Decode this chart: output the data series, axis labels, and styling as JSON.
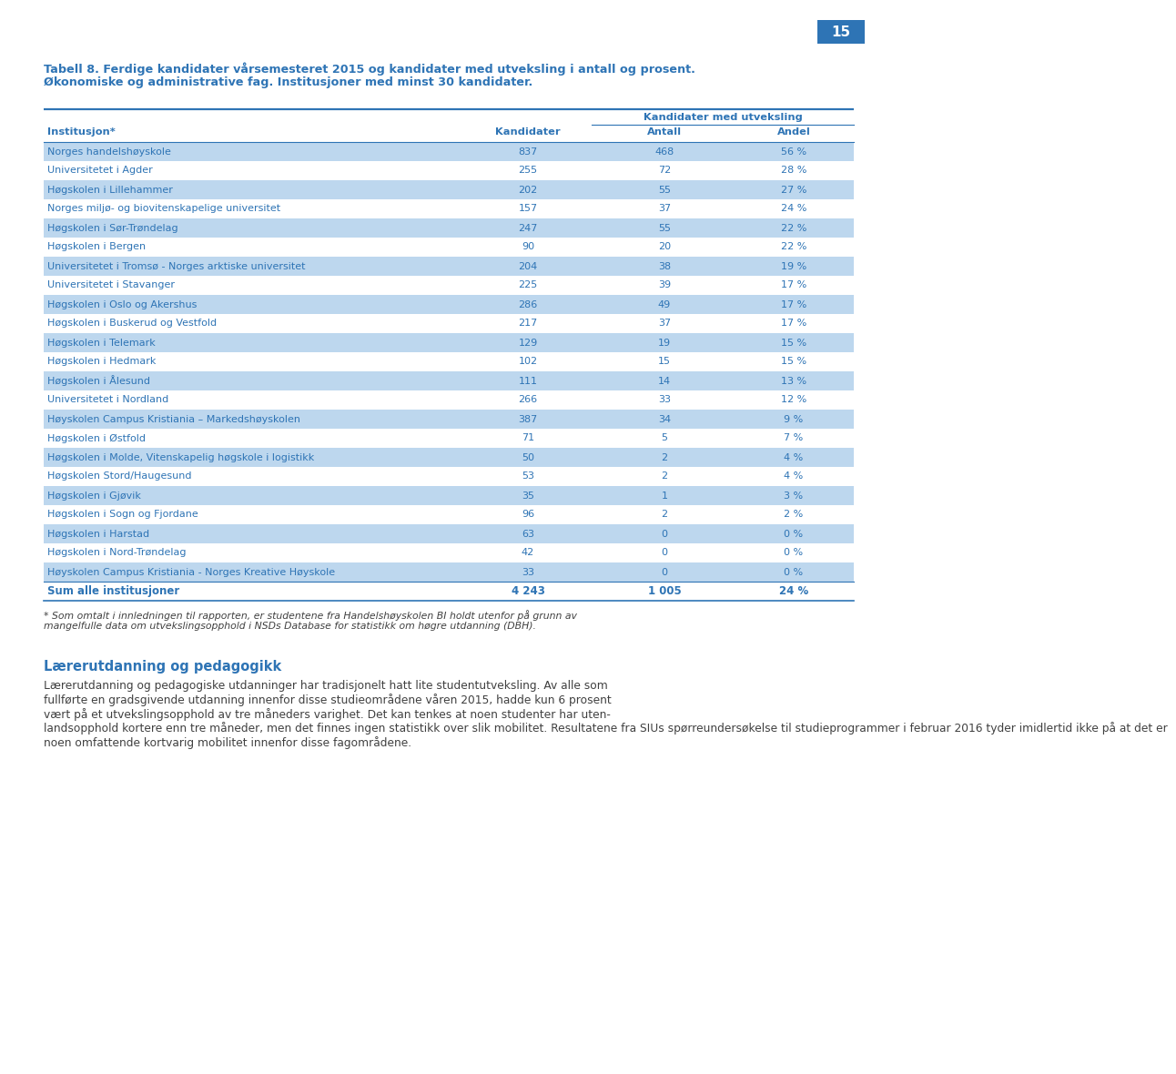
{
  "page_number": "15",
  "title_line1": "Tabell 8. Ferdige kandidater vårsemesteret 2015 og kandidater med utveksling i antall og prosent.",
  "title_line2": "Økonomiske og administrative fag. Institusjoner med minst 30 kandidater.",
  "col_header_inst": "Institusjon*",
  "col_header_kand": "Kandidater",
  "col_header_group": "Kandidater med utveksling",
  "col_header_antall": "Antall",
  "col_header_andel": "Andel",
  "rows": [
    {
      "inst": "Norges handelshøyskole",
      "kand": "837",
      "antall": "468",
      "andel": "56 %",
      "shade": true
    },
    {
      "inst": "Universitetet i Agder",
      "kand": "255",
      "antall": "72",
      "andel": "28 %",
      "shade": false
    },
    {
      "inst": "Høgskolen i Lillehammer",
      "kand": "202",
      "antall": "55",
      "andel": "27 %",
      "shade": true
    },
    {
      "inst": "Norges miljø- og biovitenskapelige universitet",
      "kand": "157",
      "antall": "37",
      "andel": "24 %",
      "shade": false
    },
    {
      "inst": "Høgskolen i Sør-Trøndelag",
      "kand": "247",
      "antall": "55",
      "andel": "22 %",
      "shade": true
    },
    {
      "inst": "Høgskolen i Bergen",
      "kand": "90",
      "antall": "20",
      "andel": "22 %",
      "shade": false
    },
    {
      "inst": "Universitetet i Tromsø - Norges arktiske universitet",
      "kand": "204",
      "antall": "38",
      "andel": "19 %",
      "shade": true
    },
    {
      "inst": "Universitetet i Stavanger",
      "kand": "225",
      "antall": "39",
      "andel": "17 %",
      "shade": false
    },
    {
      "inst": "Høgskolen i Oslo og Akershus",
      "kand": "286",
      "antall": "49",
      "andel": "17 %",
      "shade": true
    },
    {
      "inst": "Høgskolen i Buskerud og Vestfold",
      "kand": "217",
      "antall": "37",
      "andel": "17 %",
      "shade": false
    },
    {
      "inst": "Høgskolen i Telemark",
      "kand": "129",
      "antall": "19",
      "andel": "15 %",
      "shade": true
    },
    {
      "inst": "Høgskolen i Hedmark",
      "kand": "102",
      "antall": "15",
      "andel": "15 %",
      "shade": false
    },
    {
      "inst": "Høgskolen i Ålesund",
      "kand": "111",
      "antall": "14",
      "andel": "13 %",
      "shade": true
    },
    {
      "inst": "Universitetet i Nordland",
      "kand": "266",
      "antall": "33",
      "andel": "12 %",
      "shade": false
    },
    {
      "inst": "Høyskolen Campus Kristiania – Markedshøyskolen",
      "kand": "387",
      "antall": "34",
      "andel": "9 %",
      "shade": true
    },
    {
      "inst": "Høgskolen i Østfold",
      "kand": "71",
      "antall": "5",
      "andel": "7 %",
      "shade": false
    },
    {
      "inst": "Høgskolen i Molde, Vitenskapelig høgskole i logistikk",
      "kand": "50",
      "antall": "2",
      "andel": "4 %",
      "shade": true
    },
    {
      "inst": "Høgskolen Stord/Haugesund",
      "kand": "53",
      "antall": "2",
      "andel": "4 %",
      "shade": false
    },
    {
      "inst": "Høgskolen i Gjøvik",
      "kand": "35",
      "antall": "1",
      "andel": "3 %",
      "shade": true
    },
    {
      "inst": "Høgskolen i Sogn og Fjordane",
      "kand": "96",
      "antall": "2",
      "andel": "2 %",
      "shade": false
    },
    {
      "inst": "Høgskolen i Harstad",
      "kand": "63",
      "antall": "0",
      "andel": "0 %",
      "shade": true
    },
    {
      "inst": "Høgskolen i Nord-Trøndelag",
      "kand": "42",
      "antall": "0",
      "andel": "0 %",
      "shade": false
    },
    {
      "inst": "Høyskolen Campus Kristiania - Norges Kreative Høyskole",
      "kand": "33",
      "antall": "0",
      "andel": "0 %",
      "shade": true
    }
  ],
  "sum_row": {
    "inst": "Sum alle institusjoner",
    "kand": "4 243",
    "antall": "1 005",
    "andel": "24 %"
  },
  "footnote_line1": "* Som omtalt i innledningen til rapporten, er studentene fra Handelshøyskolen BI holdt utenfor på grunn av",
  "footnote_line2": "mangelfulle data om utvekslingsopphold i NSDs Database for statistikk om høgre utdanning (DBH).",
  "section_title": "Lærerutdanning og pedagogikk",
  "section_para": [
    "Lærerutdanning og pedagogiske utdanninger har tradisjonelt hatt lite studentutveksling. Av alle som",
    "fullførte en gradsgivende utdanning innenfor disse studieområdene våren 2015, hadde kun 6 prosent",
    "vært på et utvekslingsopphold av tre måneders varighet. Det kan tenkes at noen studenter har uten-",
    "landsopphold kortere enn tre måneder, men det finnes ingen statistikk over slik mobilitet. Resultatene fra SIUs spørreundersøkelse til studieprogrammer i februar 2016 tyder imidlertid ikke på at det er",
    "noen omfattende kortvarig mobilitet innenfor disse fagområdene."
  ],
  "blue": "#2E74B5",
  "shade_color": "#BDD7EE",
  "dark_text": "#404040"
}
